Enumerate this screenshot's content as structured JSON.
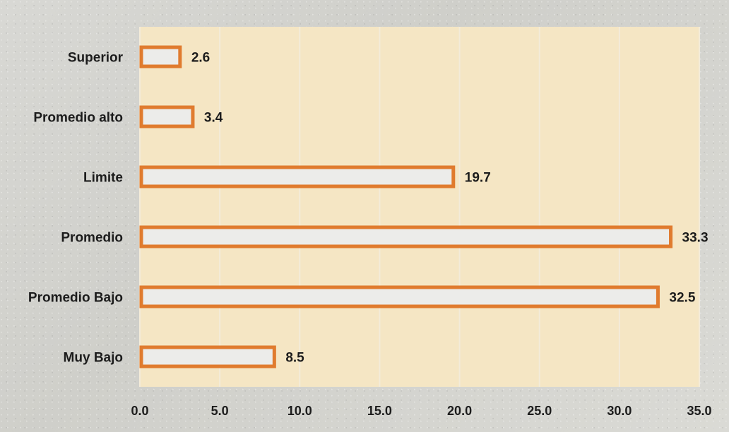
{
  "chart_data": {
    "type": "bar",
    "orientation": "horizontal",
    "categories": [
      "Superior",
      "Promedio alto",
      "Limite",
      "Promedio",
      "Promedio Bajo",
      "Muy Bajo"
    ],
    "values": [
      2.6,
      3.4,
      19.7,
      33.3,
      32.5,
      8.5
    ],
    "value_labels": [
      "2.6",
      "3.4",
      "19.7",
      "33.3",
      "32.5",
      "8.5"
    ],
    "x_ticks": [
      "0.0",
      "5.0",
      "10.0",
      "15.0",
      "20.0",
      "25.0",
      "30.0",
      "35.0"
    ],
    "xlim": [
      0,
      35
    ],
    "grid": true,
    "legend": false,
    "colors": {
      "bar_outline": "#e07b2e",
      "bar_fill": "#ececea",
      "plot_background": "#f5e6c4",
      "grid": "#f3ebd9"
    }
  }
}
